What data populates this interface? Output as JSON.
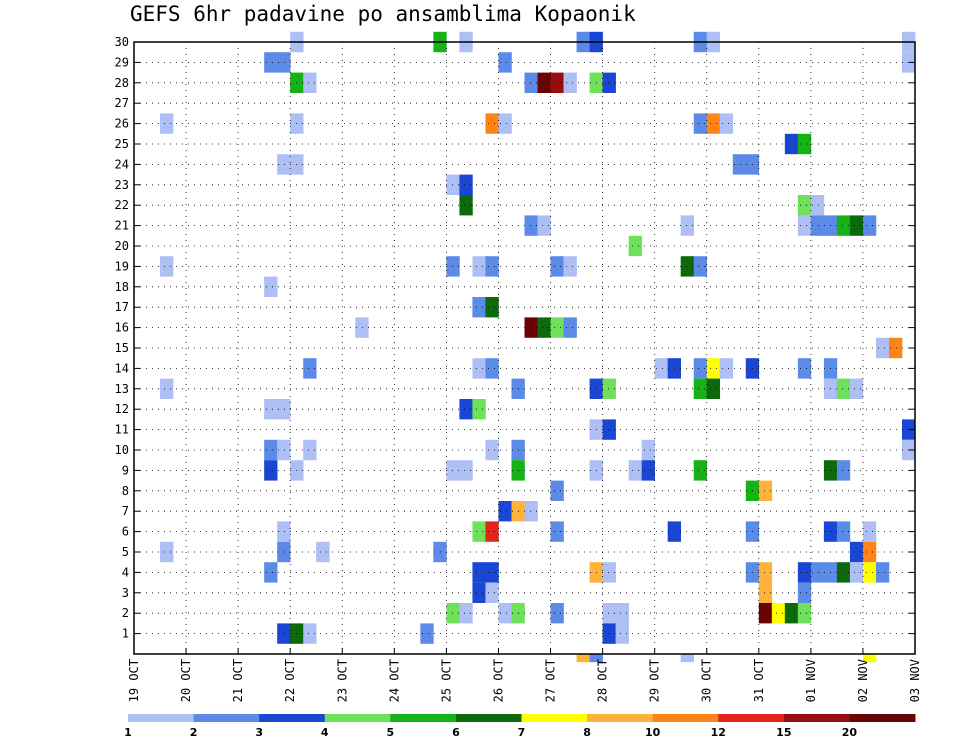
{
  "chart_data": {
    "type": "heatmap",
    "title": "GEFS 6hr padavine po ansamblima Kopaonik",
    "xlabel": "",
    "ylabel": "",
    "x_tick_labels": [
      "19 OCT",
      "20 OCT",
      "21 OCT",
      "22 OCT",
      "23 OCT",
      "24 OCT",
      "25 OCT",
      "26 OCT",
      "27 OCT",
      "28 OCT",
      "29 OCT",
      "30 OCT",
      "31 OCT",
      "01 NOV",
      "02 NOV",
      "03 NOV"
    ],
    "y_tick_labels": [
      "1",
      "2",
      "3",
      "4",
      "5",
      "6",
      "7",
      "8",
      "9",
      "10",
      "11",
      "12",
      "13",
      "14",
      "15",
      "16",
      "17",
      "18",
      "19",
      "20",
      "21",
      "22",
      "23",
      "24",
      "25",
      "26",
      "27",
      "28",
      "29",
      "30"
    ],
    "x_range_steps": [
      0,
      60
    ],
    "y_range_members": [
      0,
      30
    ],
    "grid": true,
    "colorbar": {
      "labels": [
        "1",
        "2",
        "3",
        "4",
        "5",
        "6",
        "7",
        "8",
        "10",
        "12",
        "15",
        "20"
      ],
      "colors": [
        "#aebff5",
        "#5c8ae8",
        "#1a46d6",
        "#6fe05a",
        "#16b316",
        "#0c6a0c",
        "#ffff00",
        "#ffb23a",
        "#ff8418",
        "#e2241c",
        "#9c0c0c",
        "#6a0404"
      ]
    },
    "cells": [
      [
        30,
        12,
        0
      ],
      [
        30,
        23,
        4
      ],
      [
        30,
        25,
        0
      ],
      [
        30,
        34,
        1
      ],
      [
        30,
        35,
        2
      ],
      [
        30,
        43,
        1
      ],
      [
        30,
        44,
        0
      ],
      [
        30,
        59,
        0
      ],
      [
        29,
        10,
        1
      ],
      [
        29,
        11,
        1
      ],
      [
        29,
        28,
        1
      ],
      [
        29,
        59,
        0
      ],
      [
        28,
        12,
        4
      ],
      [
        28,
        13,
        0
      ],
      [
        28,
        30,
        1
      ],
      [
        28,
        31,
        11
      ],
      [
        28,
        32,
        10
      ],
      [
        28,
        33,
        0
      ],
      [
        28,
        35,
        3
      ],
      [
        28,
        36,
        2
      ],
      [
        26,
        2,
        0
      ],
      [
        26,
        12,
        0
      ],
      [
        26,
        27,
        8
      ],
      [
        26,
        28,
        0
      ],
      [
        26,
        43,
        1
      ],
      [
        26,
        44,
        8
      ],
      [
        26,
        45,
        0
      ],
      [
        25,
        50,
        2
      ],
      [
        25,
        51,
        4
      ],
      [
        24,
        11,
        0
      ],
      [
        24,
        12,
        0
      ],
      [
        24,
        46,
        1
      ],
      [
        24,
        47,
        1
      ],
      [
        23,
        24,
        0
      ],
      [
        23,
        25,
        2
      ],
      [
        22,
        25,
        5
      ],
      [
        22,
        51,
        3
      ],
      [
        22,
        52,
        0
      ],
      [
        21,
        30,
        1
      ],
      [
        21,
        31,
        0
      ],
      [
        21,
        42,
        0
      ],
      [
        21,
        51,
        0
      ],
      [
        21,
        52,
        1
      ],
      [
        21,
        53,
        1
      ],
      [
        21,
        54,
        4
      ],
      [
        21,
        55,
        5
      ],
      [
        21,
        56,
        1
      ],
      [
        20,
        38,
        3
      ],
      [
        19,
        2,
        0
      ],
      [
        19,
        24,
        1
      ],
      [
        19,
        26,
        0
      ],
      [
        19,
        27,
        1
      ],
      [
        19,
        32,
        1
      ],
      [
        19,
        33,
        0
      ],
      [
        19,
        42,
        5
      ],
      [
        19,
        43,
        1
      ],
      [
        18,
        10,
        0
      ],
      [
        17,
        26,
        1
      ],
      [
        17,
        27,
        5
      ],
      [
        16,
        17,
        0
      ],
      [
        16,
        30,
        11
      ],
      [
        16,
        31,
        5
      ],
      [
        16,
        32,
        3
      ],
      [
        16,
        33,
        1
      ],
      [
        15,
        57,
        0
      ],
      [
        15,
        58,
        8
      ],
      [
        14,
        13,
        1
      ],
      [
        14,
        26,
        0
      ],
      [
        14,
        27,
        1
      ],
      [
        14,
        40,
        0
      ],
      [
        14,
        41,
        2
      ],
      [
        14,
        43,
        1
      ],
      [
        14,
        44,
        6
      ],
      [
        14,
        45,
        0
      ],
      [
        14,
        47,
        2
      ],
      [
        14,
        51,
        1
      ],
      [
        14,
        53,
        1
      ],
      [
        13,
        2,
        0
      ],
      [
        13,
        29,
        1
      ],
      [
        13,
        35,
        2
      ],
      [
        13,
        36,
        3
      ],
      [
        13,
        43,
        4
      ],
      [
        13,
        44,
        5
      ],
      [
        13,
        53,
        0
      ],
      [
        13,
        54,
        3
      ],
      [
        13,
        55,
        0
      ],
      [
        12,
        10,
        0
      ],
      [
        12,
        11,
        0
      ],
      [
        12,
        25,
        2
      ],
      [
        12,
        26,
        3
      ],
      [
        11,
        35,
        0
      ],
      [
        11,
        36,
        2
      ],
      [
        11,
        59,
        2
      ],
      [
        10,
        10,
        1
      ],
      [
        10,
        11,
        0
      ],
      [
        10,
        13,
        0
      ],
      [
        10,
        27,
        0
      ],
      [
        10,
        29,
        1
      ],
      [
        10,
        39,
        0
      ],
      [
        10,
        59,
        0
      ],
      [
        9,
        10,
        2
      ],
      [
        9,
        12,
        0
      ],
      [
        9,
        24,
        0
      ],
      [
        9,
        25,
        0
      ],
      [
        9,
        29,
        4
      ],
      [
        9,
        35,
        0
      ],
      [
        9,
        38,
        0
      ],
      [
        9,
        39,
        2
      ],
      [
        9,
        43,
        4
      ],
      [
        9,
        53,
        5
      ],
      [
        9,
        54,
        1
      ],
      [
        8,
        32,
        1
      ],
      [
        8,
        47,
        4
      ],
      [
        8,
        48,
        7
      ],
      [
        7,
        28,
        2
      ],
      [
        7,
        29,
        7
      ],
      [
        7,
        30,
        0
      ],
      [
        6,
        11,
        0
      ],
      [
        6,
        26,
        3
      ],
      [
        6,
        27,
        9
      ],
      [
        6,
        32,
        1
      ],
      [
        6,
        41,
        2
      ],
      [
        6,
        47,
        1
      ],
      [
        6,
        53,
        2
      ],
      [
        6,
        54,
        1
      ],
      [
        6,
        56,
        0
      ],
      [
        5,
        2,
        0
      ],
      [
        5,
        11,
        1
      ],
      [
        5,
        14,
        0
      ],
      [
        5,
        23,
        1
      ],
      [
        5,
        55,
        2
      ],
      [
        5,
        56,
        8
      ],
      [
        4,
        10,
        1
      ],
      [
        4,
        26,
        2
      ],
      [
        4,
        27,
        2
      ],
      [
        4,
        35,
        7
      ],
      [
        4,
        36,
        0
      ],
      [
        4,
        47,
        1
      ],
      [
        4,
        48,
        7
      ],
      [
        4,
        51,
        2
      ],
      [
        4,
        52,
        1
      ],
      [
        4,
        53,
        1
      ],
      [
        4,
        54,
        5
      ],
      [
        4,
        55,
        0
      ],
      [
        4,
        56,
        6
      ],
      [
        4,
        57,
        1
      ],
      [
        3,
        26,
        2
      ],
      [
        3,
        27,
        0
      ],
      [
        3,
        48,
        7
      ],
      [
        3,
        51,
        1
      ],
      [
        2,
        24,
        3
      ],
      [
        2,
        25,
        0
      ],
      [
        2,
        28,
        0
      ],
      [
        2,
        29,
        3
      ],
      [
        2,
        32,
        1
      ],
      [
        2,
        36,
        0
      ],
      [
        2,
        37,
        0
      ],
      [
        2,
        48,
        11
      ],
      [
        2,
        49,
        6
      ],
      [
        2,
        50,
        5
      ],
      [
        2,
        51,
        3
      ],
      [
        1,
        11,
        2
      ],
      [
        1,
        12,
        5
      ],
      [
        1,
        13,
        0
      ],
      [
        1,
        22,
        1
      ],
      [
        1,
        36,
        2
      ],
      [
        1,
        37,
        0
      ],
      [
        0,
        34,
        7
      ],
      [
        0,
        35,
        1
      ],
      [
        0,
        42,
        0
      ],
      [
        0,
        56,
        6
      ]
    ]
  }
}
